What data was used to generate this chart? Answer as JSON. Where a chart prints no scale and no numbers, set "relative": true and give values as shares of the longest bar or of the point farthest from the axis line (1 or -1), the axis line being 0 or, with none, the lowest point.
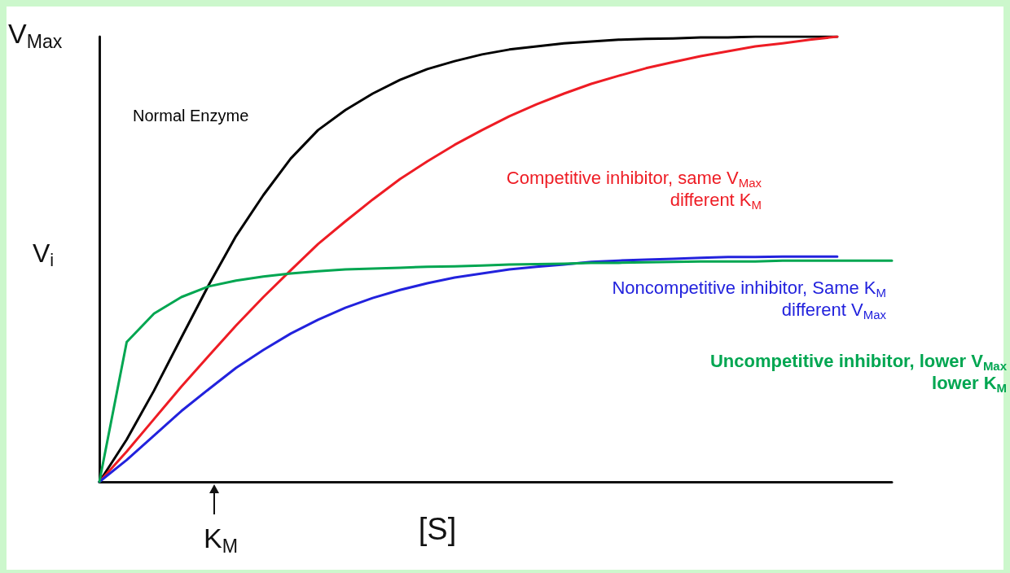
{
  "chart_data": {
    "type": "line",
    "relative": true,
    "xlabel": "[S]",
    "ylabel": "V$_{i}$",
    "annotations": [
      "V$_{Max}$",
      "K$_{M}$"
    ],
    "categories": [
      null,
      null,
      null,
      null,
      null,
      null,
      null,
      null,
      null,
      null,
      null,
      null,
      null,
      null,
      null,
      null,
      null,
      null,
      null,
      null,
      null,
      null,
      null,
      null,
      null,
      null,
      null,
      null,
      null,
      null
    ],
    "series": [
      {
        "name": "Normal Enzyme",
        "color": "#000000",
        "values": [
          0,
          0.095,
          0.205,
          0.324,
          0.442,
          0.552,
          0.644,
          0.726,
          0.79,
          0.835,
          0.872,
          0.903,
          0.927,
          0.945,
          0.96,
          0.971,
          0.978,
          0.985,
          0.989,
          0.993,
          0.995,
          0.996,
          0.998,
          0.998,
          1,
          1,
          1,
          1,
          null,
          null
        ]
      },
      {
        "name": "Competitive inhibitor,  same V$_{Max}$\ndifferent K$_{M}$",
        "color": "#ee1c24",
        "values": [
          0,
          0.068,
          0.141,
          0.214,
          0.283,
          0.351,
          0.415,
          0.475,
          0.534,
          0.585,
          0.634,
          0.68,
          0.72,
          0.757,
          0.79,
          0.821,
          0.848,
          0.872,
          0.894,
          0.912,
          0.929,
          0.943,
          0.956,
          0.967,
          0.978,
          0.985,
          0.993,
          1,
          null,
          null
        ]
      },
      {
        "name": "Noncompetitive inhibitor,  Same K$_{M}$\ndifferent V$_{Max}$",
        "color": "#2222dd",
        "values": [
          0,
          0.049,
          0.104,
          0.159,
          0.208,
          0.256,
          0.296,
          0.333,
          0.364,
          0.391,
          0.413,
          0.431,
          0.446,
          0.459,
          0.468,
          0.477,
          0.483,
          0.488,
          0.494,
          0.497,
          0.499,
          0.501,
          0.503,
          0.505,
          0.505,
          0.506,
          0.506,
          0.506,
          null,
          null
        ]
      },
      {
        "name": "Uncompetitive inhibitor, lower V$_{Max}$\nlower K$_{M}$",
        "color": "#00a651",
        "values": [
          0,
          0.314,
          0.378,
          0.415,
          0.439,
          0.452,
          0.461,
          0.468,
          0.473,
          0.477,
          0.479,
          0.481,
          0.483,
          0.484,
          0.486,
          0.488,
          0.489,
          0.49,
          0.492,
          0.492,
          0.493,
          0.494,
          0.495,
          0.495,
          0.495,
          0.497,
          0.497,
          0.497,
          0.497,
          0.497
        ]
      }
    ],
    "grid": false,
    "marker": "none",
    "line_style": "solid"
  }
}
